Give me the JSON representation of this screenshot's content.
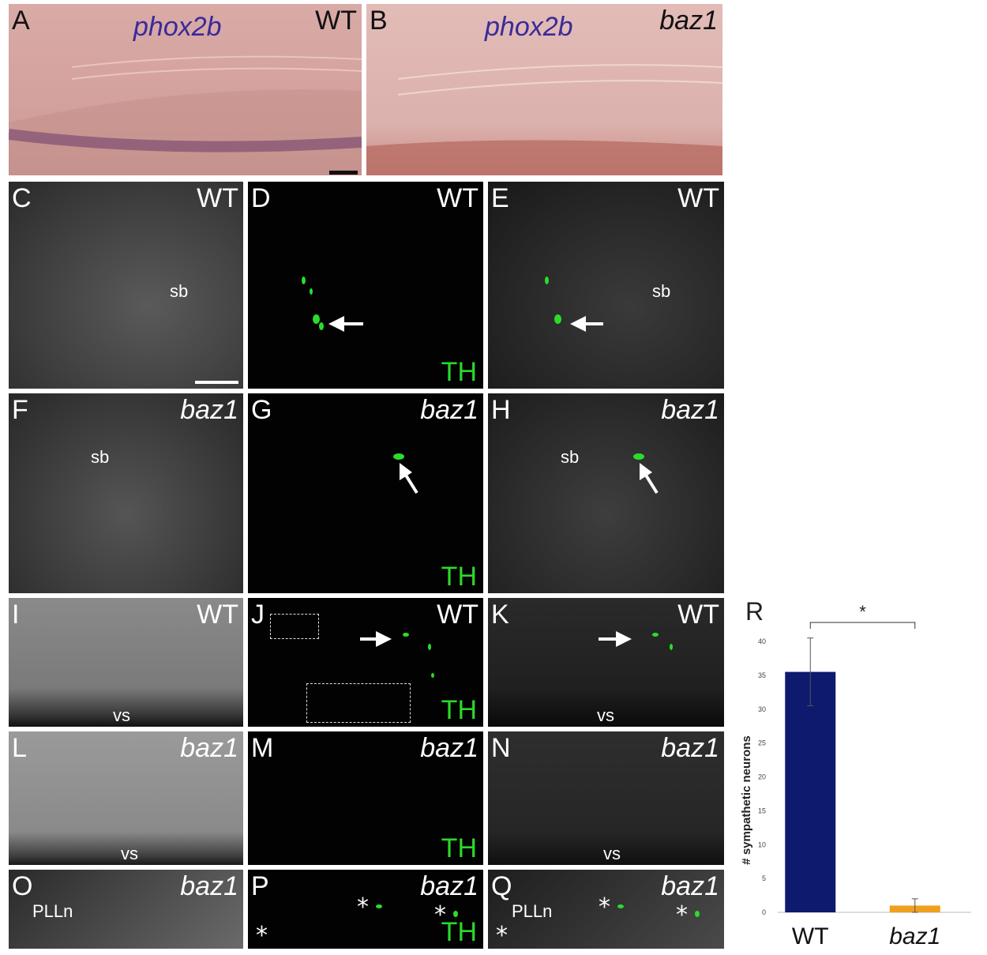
{
  "panels": {
    "A": {
      "letter": "A",
      "gene": "phox2b",
      "genotype": "WT"
    },
    "B": {
      "letter": "B",
      "gene": "phox2b",
      "genotype": "baz1"
    },
    "C": {
      "letter": "C",
      "genotype": "WT",
      "structure": "sb"
    },
    "D": {
      "letter": "D",
      "genotype": "WT",
      "marker": "TH"
    },
    "E": {
      "letter": "E",
      "genotype": "WT",
      "structure": "sb"
    },
    "F": {
      "letter": "F",
      "genotype": "baz1",
      "structure": "sb"
    },
    "G": {
      "letter": "G",
      "genotype": "baz1",
      "marker": "TH"
    },
    "H": {
      "letter": "H",
      "genotype": "baz1",
      "structure": "sb"
    },
    "I": {
      "letter": "I",
      "genotype": "WT",
      "structure": "vs"
    },
    "J": {
      "letter": "J",
      "genotype": "WT",
      "marker": "TH"
    },
    "K": {
      "letter": "K",
      "genotype": "WT",
      "structure": "vs"
    },
    "L": {
      "letter": "L",
      "genotype": "baz1",
      "structure": "vs"
    },
    "M": {
      "letter": "M",
      "genotype": "baz1",
      "marker": "TH"
    },
    "N": {
      "letter": "N",
      "genotype": "baz1",
      "structure": "vs"
    },
    "O": {
      "letter": "O",
      "genotype": "baz1",
      "structure": "PLLn"
    },
    "P": {
      "letter": "P",
      "genotype": "baz1",
      "marker": "TH",
      "asterisk": "*"
    },
    "Q": {
      "letter": "Q",
      "genotype": "baz1",
      "structure": "PLLn",
      "asterisk": "*"
    },
    "R": {
      "letter": "R"
    }
  },
  "chart_data": {
    "type": "bar",
    "categories": [
      "WT",
      "baz1"
    ],
    "values": [
      35.5,
      1.0
    ],
    "errors": [
      5.0,
      1.0
    ],
    "colors": [
      "#0d1a6e",
      "#f0a01e"
    ],
    "ylabel": "# sympathetic neurons",
    "ylim": [
      0,
      40
    ],
    "yticks": [
      "0",
      "5",
      "10",
      "15",
      "20",
      "25",
      "30",
      "35",
      "40"
    ],
    "significance": "*",
    "grid": false
  }
}
